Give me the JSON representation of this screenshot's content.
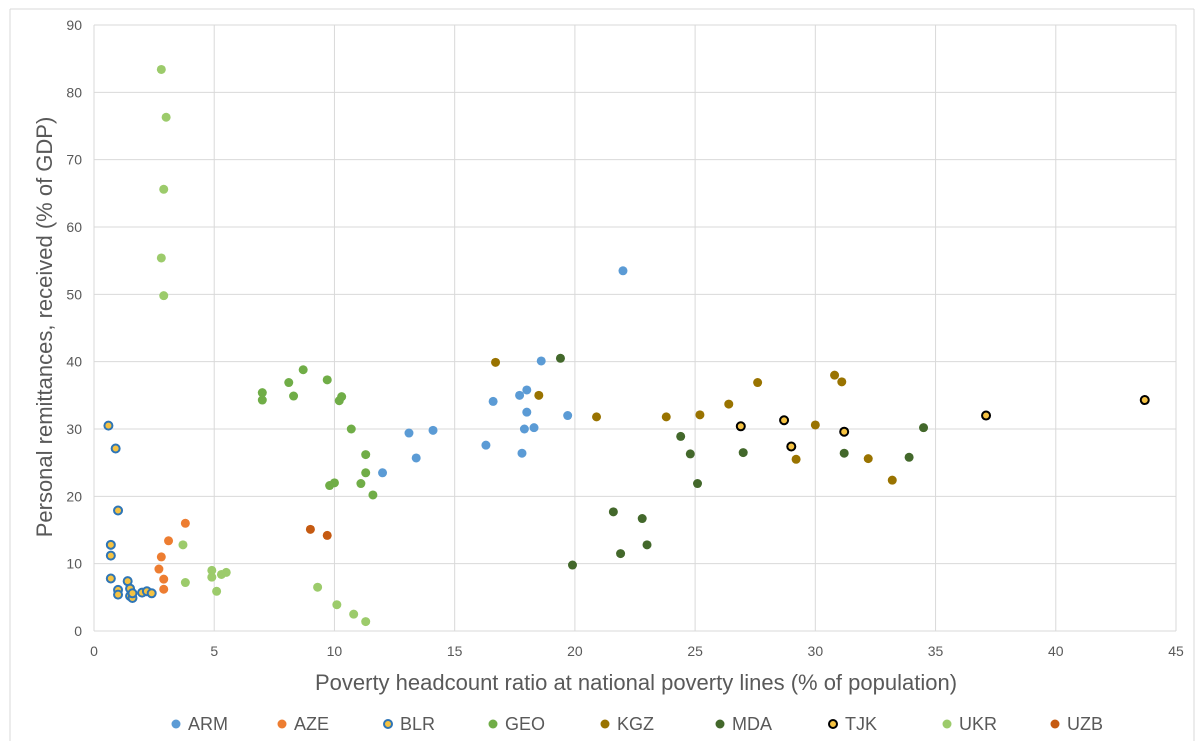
{
  "chart_data": {
    "type": "scatter",
    "xlabel": "Poverty headcount ratio at national poverty lines (% of population)",
    "ylabel": "Personal remittances, received (% of GDP)",
    "xlim": [
      0,
      45
    ],
    "ylim": [
      0,
      90
    ],
    "x_ticks": [
      0,
      5,
      10,
      15,
      20,
      25,
      30,
      35,
      40,
      45
    ],
    "y_ticks": [
      0,
      10,
      20,
      30,
      40,
      50,
      60,
      70,
      80,
      90
    ],
    "grid": true,
    "legend_position": "bottom",
    "series": [
      {
        "name": "ARM",
        "color": "#5b9bd5",
        "outline": null,
        "points": [
          [
            12.0,
            23.5
          ],
          [
            13.1,
            29.4
          ],
          [
            13.4,
            25.7
          ],
          [
            14.1,
            29.8
          ],
          [
            16.3,
            27.6
          ],
          [
            16.6,
            34.1
          ],
          [
            17.7,
            35.0
          ],
          [
            17.8,
            26.4
          ],
          [
            17.9,
            30.0
          ],
          [
            18.0,
            32.5
          ],
          [
            18.0,
            35.8
          ],
          [
            18.3,
            30.2
          ],
          [
            18.6,
            40.1
          ],
          [
            19.7,
            32.0
          ],
          [
            22.0,
            53.5
          ]
        ]
      },
      {
        "name": "AZE",
        "color": "#ed7d31",
        "outline": null,
        "points": [
          [
            2.7,
            9.2
          ],
          [
            2.8,
            11.0
          ],
          [
            2.9,
            7.7
          ],
          [
            2.9,
            6.2
          ],
          [
            3.1,
            13.4
          ],
          [
            3.8,
            16.0
          ]
        ]
      },
      {
        "name": "BLR",
        "color": "#f5c242",
        "outline": "#2e75b6",
        "points": [
          [
            0.6,
            30.5
          ],
          [
            0.7,
            12.8
          ],
          [
            0.7,
            11.2
          ],
          [
            0.7,
            7.8
          ],
          [
            0.9,
            27.1
          ],
          [
            1.0,
            17.9
          ],
          [
            1.0,
            6.1
          ],
          [
            1.0,
            5.4
          ],
          [
            1.4,
            7.4
          ],
          [
            1.5,
            6.3
          ],
          [
            1.5,
            5.2
          ],
          [
            1.6,
            4.9
          ],
          [
            1.6,
            5.6
          ],
          [
            2.0,
            5.7
          ],
          [
            2.2,
            5.9
          ],
          [
            2.4,
            5.6
          ]
        ]
      },
      {
        "name": "GEO",
        "color": "#70ad47",
        "outline": null,
        "points": [
          [
            7.0,
            35.4
          ],
          [
            7.0,
            34.3
          ],
          [
            8.1,
            36.9
          ],
          [
            8.3,
            34.9
          ],
          [
            8.7,
            38.8
          ],
          [
            9.7,
            37.3
          ],
          [
            9.8,
            21.6
          ],
          [
            10.0,
            22.0
          ],
          [
            10.2,
            34.2
          ],
          [
            10.3,
            34.8
          ],
          [
            10.7,
            30.0
          ],
          [
            11.1,
            21.9
          ],
          [
            11.3,
            26.2
          ],
          [
            11.3,
            23.5
          ],
          [
            11.6,
            20.2
          ]
        ]
      },
      {
        "name": "KGZ",
        "color": "#997300",
        "outline": null,
        "points": [
          [
            16.7,
            39.9
          ],
          [
            18.5,
            35.0
          ],
          [
            20.9,
            31.8
          ],
          [
            23.8,
            31.8
          ],
          [
            25.2,
            32.1
          ],
          [
            26.4,
            33.7
          ],
          [
            27.6,
            36.9
          ],
          [
            29.2,
            25.5
          ],
          [
            30.0,
            30.6
          ],
          [
            30.8,
            38.0
          ],
          [
            31.1,
            37.0
          ],
          [
            32.2,
            25.6
          ],
          [
            33.2,
            22.4
          ]
        ]
      },
      {
        "name": "MDA",
        "color": "#43682b",
        "outline": null,
        "points": [
          [
            19.4,
            40.5
          ],
          [
            19.9,
            9.8
          ],
          [
            21.6,
            17.7
          ],
          [
            21.9,
            11.5
          ],
          [
            22.8,
            16.7
          ],
          [
            23.0,
            12.8
          ],
          [
            24.4,
            28.9
          ],
          [
            24.8,
            26.3
          ],
          [
            25.1,
            21.9
          ],
          [
            27.0,
            26.5
          ],
          [
            31.2,
            26.4
          ],
          [
            33.9,
            25.8
          ],
          [
            34.5,
            30.2
          ]
        ]
      },
      {
        "name": "TJK",
        "color": "#f5c242",
        "outline": "#000000",
        "points": [
          [
            26.9,
            30.4
          ],
          [
            28.7,
            31.3
          ],
          [
            29.0,
            27.4
          ],
          [
            31.2,
            29.6
          ],
          [
            37.1,
            32.0
          ],
          [
            43.7,
            34.3
          ]
        ]
      },
      {
        "name": "UKR",
        "color": "#9ccb6b",
        "outline": null,
        "points": [
          [
            2.8,
            83.4
          ],
          [
            3.0,
            76.3
          ],
          [
            2.9,
            65.6
          ],
          [
            2.8,
            55.4
          ],
          [
            2.9,
            49.8
          ],
          [
            3.7,
            12.8
          ],
          [
            3.8,
            7.2
          ],
          [
            4.9,
            9.0
          ],
          [
            4.9,
            8.0
          ],
          [
            5.1,
            5.9
          ],
          [
            5.3,
            8.4
          ],
          [
            5.5,
            8.7
          ],
          [
            9.3,
            6.5
          ],
          [
            10.1,
            3.9
          ],
          [
            10.8,
            2.5
          ],
          [
            11.3,
            1.4
          ]
        ]
      },
      {
        "name": "UZB",
        "color": "#c55a11",
        "outline": null,
        "points": [
          [
            9.0,
            15.1
          ],
          [
            9.7,
            14.2
          ]
        ]
      }
    ]
  }
}
